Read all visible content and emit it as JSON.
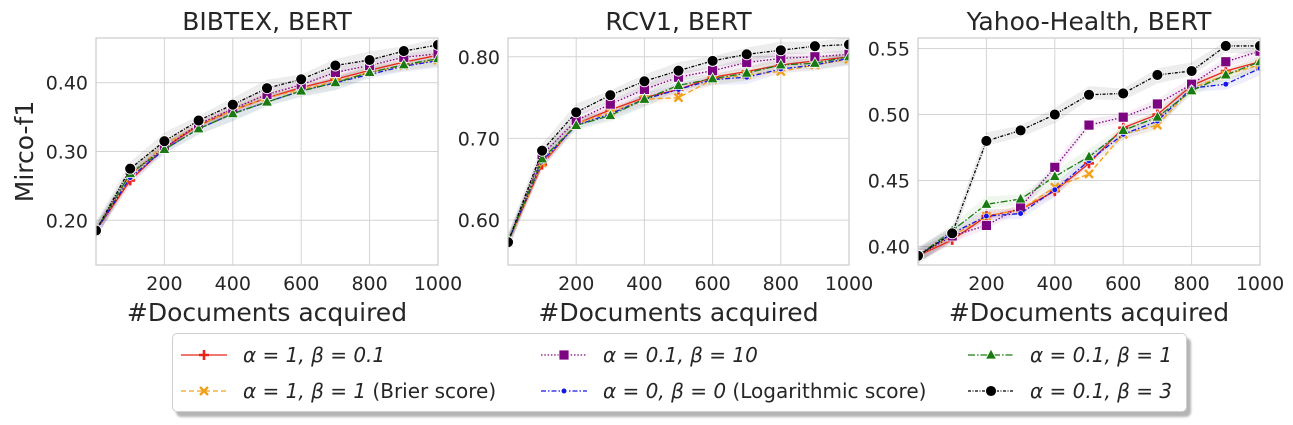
{
  "chart_data": [
    {
      "type": "line",
      "title": "BIBTEX, BERT",
      "xlabel": "#Documents acquired",
      "ylabel": "Mirco-f1",
      "xlim": [
        0,
        1000
      ],
      "ylim": [
        0.135,
        0.465
      ],
      "xticks": [
        200,
        400,
        600,
        800,
        1000
      ],
      "yticks": [
        0.2,
        0.3,
        0.4
      ],
      "ytick_labels": [
        "0.20",
        "0.30",
        "0.40"
      ],
      "grid": true,
      "x": [
        0,
        100,
        200,
        300,
        400,
        500,
        600,
        700,
        800,
        900,
        1000
      ],
      "series": [
        {
          "key": "s1",
          "values": [
            0.185,
            0.258,
            0.305,
            0.338,
            0.36,
            0.378,
            0.393,
            0.405,
            0.418,
            0.43,
            0.44
          ]
        },
        {
          "key": "s2",
          "values": [
            0.185,
            0.265,
            0.31,
            0.338,
            0.36,
            0.378,
            0.39,
            0.402,
            0.415,
            0.425,
            0.433
          ]
        },
        {
          "key": "s3",
          "values": [
            0.185,
            0.268,
            0.305,
            0.34,
            0.362,
            0.383,
            0.397,
            0.415,
            0.425,
            0.437,
            0.442
          ]
        },
        {
          "key": "s4",
          "values": [
            0.185,
            0.262,
            0.303,
            0.333,
            0.355,
            0.372,
            0.388,
            0.4,
            0.412,
            0.424,
            0.432
          ]
        },
        {
          "key": "s5",
          "values": [
            0.185,
            0.268,
            0.303,
            0.333,
            0.355,
            0.372,
            0.388,
            0.4,
            0.415,
            0.426,
            0.435
          ]
        },
        {
          "key": "s6",
          "values": [
            0.185,
            0.275,
            0.315,
            0.345,
            0.368,
            0.392,
            0.405,
            0.425,
            0.433,
            0.446,
            0.455
          ]
        }
      ]
    },
    {
      "type": "line",
      "title": "RCV1, BERT",
      "xlabel": "#Documents acquired",
      "ylabel": "",
      "xlim": [
        0,
        1000
      ],
      "ylim": [
        0.545,
        0.823
      ],
      "xticks": [
        200,
        400,
        600,
        800,
        1000
      ],
      "yticks": [
        0.6,
        0.7,
        0.8
      ],
      "ytick_labels": [
        "0.60",
        "0.70",
        "0.80"
      ],
      "grid": true,
      "x": [
        0,
        100,
        200,
        300,
        400,
        500,
        600,
        700,
        800,
        900,
        1000
      ],
      "series": [
        {
          "key": "s1",
          "values": [
            0.573,
            0.668,
            0.718,
            0.735,
            0.75,
            0.76,
            0.775,
            0.782,
            0.79,
            0.795,
            0.8
          ]
        },
        {
          "key": "s2",
          "values": [
            0.573,
            0.67,
            0.718,
            0.732,
            0.748,
            0.75,
            0.772,
            0.778,
            0.782,
            0.79,
            0.797
          ]
        },
        {
          "key": "s3",
          "values": [
            0.573,
            0.68,
            0.722,
            0.742,
            0.76,
            0.775,
            0.783,
            0.793,
            0.798,
            0.8,
            0.803
          ]
        },
        {
          "key": "s4",
          "values": [
            0.573,
            0.672,
            0.716,
            0.73,
            0.748,
            0.76,
            0.772,
            0.775,
            0.785,
            0.79,
            0.798
          ]
        },
        {
          "key": "s5",
          "values": [
            0.573,
            0.675,
            0.716,
            0.728,
            0.748,
            0.765,
            0.773,
            0.78,
            0.79,
            0.792,
            0.8
          ]
        },
        {
          "key": "s6",
          "values": [
            0.573,
            0.685,
            0.732,
            0.753,
            0.77,
            0.783,
            0.795,
            0.803,
            0.808,
            0.813,
            0.815
          ]
        }
      ]
    },
    {
      "type": "line",
      "title": "Yahoo-Health, BERT",
      "xlabel": "#Documents acquired",
      "ylabel": "",
      "xlim": [
        0,
        1000
      ],
      "ylim": [
        0.386,
        0.558
      ],
      "xticks": [
        200,
        400,
        600,
        800,
        1000
      ],
      "yticks": [
        0.4,
        0.45,
        0.5,
        0.55
      ],
      "ytick_labels": [
        "0.40",
        "0.45",
        "0.50",
        "0.55"
      ],
      "grid": true,
      "x": [
        0,
        100,
        200,
        300,
        400,
        500,
        600,
        700,
        800,
        900,
        1000
      ],
      "series": [
        {
          "key": "s1",
          "values": [
            0.393,
            0.405,
            0.423,
            0.428,
            0.442,
            0.463,
            0.49,
            0.5,
            0.522,
            0.533,
            0.54
          ]
        },
        {
          "key": "s2",
          "values": [
            0.393,
            0.408,
            0.423,
            0.428,
            0.445,
            0.455,
            0.485,
            0.492,
            0.52,
            0.53,
            0.538
          ]
        },
        {
          "key": "s3",
          "values": [
            0.393,
            0.408,
            0.416,
            0.43,
            0.46,
            0.492,
            0.498,
            0.508,
            0.523,
            0.54,
            0.548
          ]
        },
        {
          "key": "s4",
          "values": [
            0.393,
            0.41,
            0.423,
            0.425,
            0.443,
            0.465,
            0.485,
            0.495,
            0.52,
            0.523,
            0.535
          ]
        },
        {
          "key": "s5",
          "values": [
            0.393,
            0.412,
            0.432,
            0.436,
            0.453,
            0.468,
            0.488,
            0.498,
            0.518,
            0.53,
            0.54
          ]
        },
        {
          "key": "s6",
          "values": [
            0.393,
            0.41,
            0.48,
            0.488,
            0.5,
            0.515,
            0.516,
            0.53,
            0.533,
            0.552,
            0.552
          ]
        }
      ]
    }
  ],
  "series_styles": {
    "s1": {
      "color": "#e8251c",
      "marker": "plus",
      "dash": ""
    },
    "s2": {
      "color": "#f2a019",
      "marker": "x",
      "dash": "5,3"
    },
    "s3": {
      "color": "#7d0480",
      "marker": "square",
      "dash": "1.5,1.8"
    },
    "s4": {
      "color": "#1515e6",
      "marker": "dot",
      "dash": "5,2,1.5,2"
    },
    "s5": {
      "color": "#1a7a12",
      "marker": "triangle",
      "dash": "7,2,1.5,2"
    },
    "s6": {
      "color": "#000000",
      "marker": "circle",
      "dash": "3,1.5,1,1.5"
    }
  },
  "legend": {
    "placement": "bottom-center",
    "items": [
      {
        "key": "s1",
        "label": "α = 1, β = 0.1",
        "note": ""
      },
      {
        "key": "s3",
        "label": "α = 0.1, β = 10",
        "note": ""
      },
      {
        "key": "s5",
        "label": "α = 0.1, β = 1",
        "note": ""
      },
      {
        "key": "s2",
        "label": "α = 1, β = 1",
        "note": "(Brier score)"
      },
      {
        "key": "s4",
        "label": "α = 0, β = 0",
        "note": "(Logarithmic score)"
      },
      {
        "key": "s6",
        "label": "α = 0.1, β = 3",
        "note": ""
      }
    ]
  }
}
